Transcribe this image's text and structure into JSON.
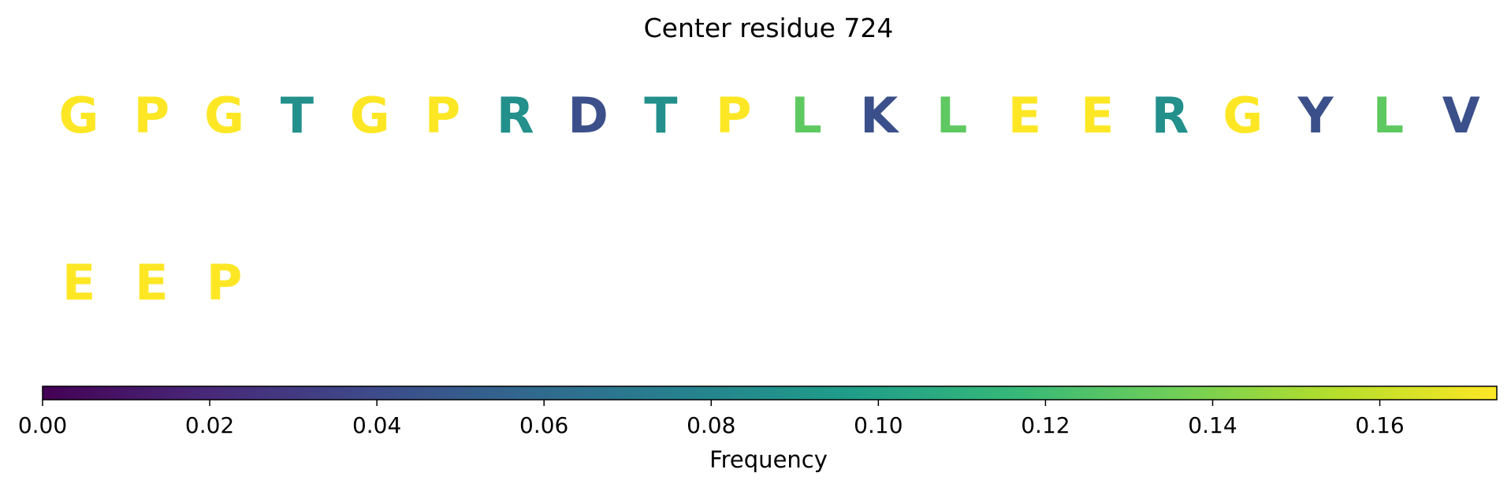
{
  "chart_data": {
    "type": "heatmap",
    "title": "Center residue 724",
    "residues": [
      {
        "letter": "G",
        "freq": 0.174
      },
      {
        "letter": "P",
        "freq": 0.174
      },
      {
        "letter": "G",
        "freq": 0.174
      },
      {
        "letter": "T",
        "freq": 0.087
      },
      {
        "letter": "G",
        "freq": 0.174
      },
      {
        "letter": "P",
        "freq": 0.174
      },
      {
        "letter": "R",
        "freq": 0.087
      },
      {
        "letter": "D",
        "freq": 0.043
      },
      {
        "letter": "T",
        "freq": 0.087
      },
      {
        "letter": "P",
        "freq": 0.174
      },
      {
        "letter": "L",
        "freq": 0.13
      },
      {
        "letter": "K",
        "freq": 0.043
      },
      {
        "letter": "L",
        "freq": 0.13
      },
      {
        "letter": "E",
        "freq": 0.174
      },
      {
        "letter": "E",
        "freq": 0.174
      },
      {
        "letter": "R",
        "freq": 0.087
      },
      {
        "letter": "G",
        "freq": 0.174
      },
      {
        "letter": "Y",
        "freq": 0.043
      },
      {
        "letter": "L",
        "freq": 0.13
      },
      {
        "letter": "V",
        "freq": 0.043
      },
      {
        "letter": "E",
        "freq": 0.174
      },
      {
        "letter": "E",
        "freq": 0.174
      },
      {
        "letter": "P",
        "freq": 0.174
      }
    ],
    "colorbar": {
      "label": "Frequency",
      "range": [
        0,
        0.174
      ],
      "ticks": [
        0.0,
        0.02,
        0.04,
        0.06,
        0.08,
        0.1,
        0.12,
        0.14,
        0.16
      ],
      "tick_labels": [
        "0.00",
        "0.02",
        "0.04",
        "0.06",
        "0.08",
        "0.10",
        "0.12",
        "0.14",
        "0.16"
      ],
      "colormap": "viridis"
    }
  }
}
